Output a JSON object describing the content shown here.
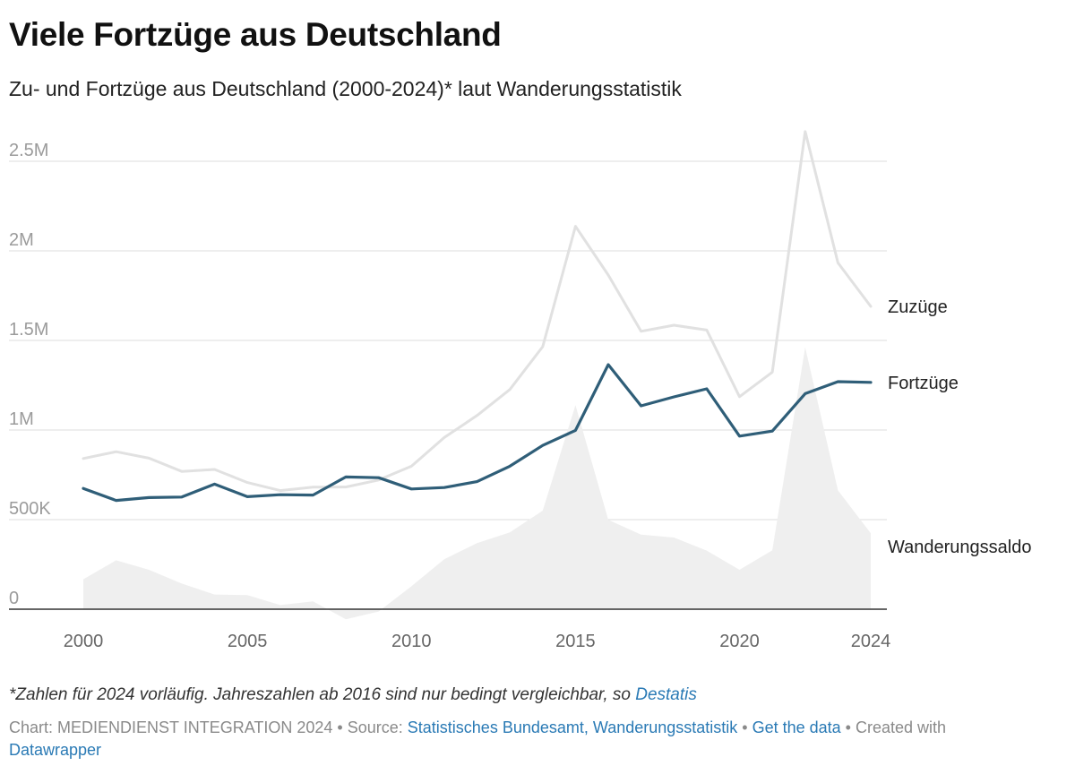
{
  "header": {
    "title": "Viele Fortzüge aus Deutschland",
    "subtitle": "Zu- und Fortzüge aus Deutschland (2000-2024)* laut Wanderungsstatistik"
  },
  "chart_data": {
    "type": "line",
    "title": "Viele Fortzüge aus Deutschland",
    "subtitle": "Zu- und Fortzüge aus Deutschland (2000-2024)* laut Wanderungsstatistik",
    "x": [
      2000,
      2001,
      2002,
      2003,
      2004,
      2005,
      2006,
      2007,
      2008,
      2009,
      2010,
      2011,
      2012,
      2013,
      2014,
      2015,
      2016,
      2017,
      2018,
      2019,
      2020,
      2021,
      2022,
      2023,
      2024
    ],
    "x_ticks": [
      "2000",
      "2005",
      "2010",
      "2015",
      "2020",
      "2024"
    ],
    "y_ticks": [
      {
        "value": 0,
        "label": "0"
      },
      {
        "value": 500000,
        "label": "500K"
      },
      {
        "value": 1000000,
        "label": "1M"
      },
      {
        "value": 1500000,
        "label": "1.5M"
      },
      {
        "value": 2000000,
        "label": "2M"
      },
      {
        "value": 2500000,
        "label": "2.5M"
      }
    ],
    "ylim": [
      -50000,
      2700000
    ],
    "grid": true,
    "series": [
      {
        "name": "Zuzüge",
        "color": "#e1e1e1",
        "style": "line",
        "values": [
          841000,
          879000,
          843000,
          769000,
          780000,
          707000,
          662000,
          681000,
          682000,
          721000,
          798000,
          958000,
          1081000,
          1226000,
          1465000,
          2137000,
          1865000,
          1551000,
          1585000,
          1558000,
          1186000,
          1323000,
          2666000,
          1933000,
          1690000
        ]
      },
      {
        "name": "Fortzüge",
        "color": "#2f5e78",
        "style": "line",
        "values": [
          674000,
          607000,
          623000,
          626000,
          698000,
          628000,
          639000,
          637000,
          738000,
          734000,
          671000,
          679000,
          712000,
          798000,
          914000,
          998000,
          1365000,
          1135000,
          1185000,
          1230000,
          966000,
          994000,
          1203000,
          1270000,
          1266000
        ]
      },
      {
        "name": "Wanderungssaldo",
        "color": "#efefef",
        "style": "area",
        "values": [
          167000,
          273000,
          220000,
          143000,
          82000,
          79000,
          23000,
          44000,
          -56000,
          -13000,
          128000,
          279000,
          369000,
          429000,
          550000,
          1139000,
          499000,
          416000,
          400000,
          327000,
          220000,
          329000,
          1462000,
          663000,
          424000
        ]
      }
    ]
  },
  "footnote": {
    "text": "*Zahlen für 2024 vorläufig. Jahreszahlen ab 2016 sind nur bedingt vergleichbar, so ",
    "link": "Destatis"
  },
  "footer": {
    "chart_credit": "Chart: MEDIENDIENST INTEGRATION 2024",
    "sep": " • ",
    "source_label": "Source: ",
    "source_link": "Statistisches Bundesamt, Wanderungsstatistik",
    "data_link": "Get the data",
    "created_label": "Created with",
    "created_link": "Datawrapper"
  }
}
